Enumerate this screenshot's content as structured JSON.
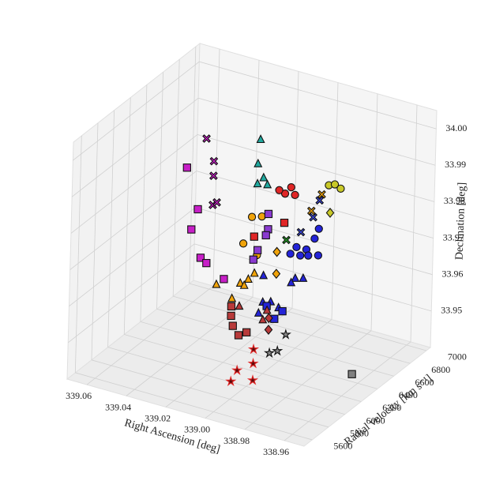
{
  "chart_data": {
    "type": "scatter3d",
    "xlabel": "Right Ascension [deg]",
    "ylabel": "Radial velocity [km s⁻¹]",
    "zlabel": "Declination [deg]",
    "xlim": [
      338.95,
      339.07
    ],
    "ylim": [
      5500,
      7050
    ],
    "zlim": [
      33.94,
      34.005
    ],
    "xticks": [
      339.06,
      339.04,
      339.02,
      {
        "value": 339,
        "label": "339.00"
      },
      338.98,
      338.96
    ],
    "yticks": [
      5600,
      5800,
      6000,
      6200,
      6400,
      6600,
      6800,
      7000
    ],
    "zticks": [
      33.95,
      33.96,
      33.97,
      33.98,
      33.99,
      {
        "value": 34,
        "label": "34.00"
      }
    ],
    "grid": true,
    "series": [
      {
        "marker": "square",
        "color": "#c71fc7",
        "x": [
          339.025,
          339.019,
          339.022,
          339.017,
          339.014,
          339.005
        ],
        "y": [
          5810,
          5810,
          5810,
          5810,
          5810,
          5810
        ],
        "z": [
          33.9995,
          33.989,
          33.983,
          33.976,
          33.975,
          33.972
        ]
      },
      {
        "marker": "x",
        "color": "#c71fc7",
        "x": [
          339.028,
          339.024,
          339.024,
          339.024,
          339.022
        ],
        "y": [
          6120,
          6120,
          6120,
          6120,
          6120
        ],
        "z": [
          34.0016,
          33.996,
          33.992,
          33.984,
          33.985
        ]
      },
      {
        "marker": "triangle",
        "color": "#20a89e",
        "x": [
          339.007,
          339.008,
          339.005,
          339.008,
          339.003
        ],
        "y": [
          6275,
          6275,
          6275,
          6275,
          6275
        ],
        "z": [
          34.0018,
          33.995,
          33.9916,
          33.9895,
          33.99
        ]
      },
      {
        "marker": "circle",
        "color": "#e02626",
        "x": [
          338.994,
          338.991,
          338.997,
          338.989
        ],
        "y": [
          6275,
          6275,
          6275,
          6275
        ],
        "z": [
          33.989,
          33.9912,
          33.9895,
          33.9894
        ]
      },
      {
        "marker": "circle",
        "color": "#c8c828",
        "x": [
          338.997,
          338.994,
          338.991
        ],
        "y": [
          6895,
          6895,
          6895
        ],
        "z": [
          33.98,
          33.9807,
          33.98
        ]
      },
      {
        "marker": "diamond",
        "color": "#c8c828",
        "x": [
          338.996
        ],
        "y": [
          6895
        ],
        "z": [
          33.9726
        ]
      },
      {
        "marker": "circle",
        "color": "#2424d8",
        "x": [
          338.989,
          338.991,
          338.995,
          338.989,
          338.998,
          339.003,
          339.0,
          338.994
        ],
        "y": [
          6585,
          6585,
          6585,
          6585,
          6585,
          6585,
          6585,
          6585
        ],
        "z": [
          33.9747,
          33.9717,
          33.9681,
          33.9674,
          33.966,
          33.9657,
          33.968,
          33.9666
        ]
      },
      {
        "marker": "triangle",
        "color": "#2424d8",
        "x": [
          338.994,
          338.99,
          338.996,
          339.01,
          339.01,
          339.006,
          339.002,
          339.012
        ],
        "y": [
          6430,
          6430,
          6430,
          6430,
          6430,
          6430,
          6430,
          6430
        ],
        "z": [
          33.963,
          33.9636,
          33.9615,
          33.9613,
          33.954,
          33.9547,
          33.9537,
          33.9507
        ]
      },
      {
        "marker": "square",
        "color": "#2424d8",
        "x": [
          339.008,
          339.0,
          339.004
        ],
        "y": [
          6430,
          6430,
          6430
        ],
        "z": [
          33.9533,
          33.9531,
          33.9504
        ]
      },
      {
        "marker": "x",
        "color": "#3a46e0",
        "x": [
          338.998,
          338.992,
          338.989
        ],
        "y": [
          6585,
          6585,
          6585
        ],
        "z": [
          33.9724,
          33.9774,
          33.9825
        ]
      },
      {
        "marker": "x",
        "color": "#22a022",
        "x": [
          338.999
        ],
        "y": [
          6430
        ],
        "z": [
          33.9728
        ]
      },
      {
        "marker": "triangle",
        "color": "#f0a30a",
        "x": [
          339.01,
          339.006,
          339.002,
          338.999,
          339.018,
          339.004
        ],
        "y": [
          6042,
          6042,
          6042,
          6042,
          6042,
          6042
        ],
        "z": [
          33.9618,
          33.9666,
          33.9683,
          33.9704,
          33.9644,
          33.9663
        ]
      },
      {
        "marker": "circle",
        "color": "#f0a30a",
        "x": [
          339.001,
          338.996,
          339.005,
          338.998
        ],
        "y": [
          6042,
          6042,
          6042,
          6042
        ],
        "z": [
          33.9856,
          33.9865,
          33.9777,
          33.9756
        ]
      },
      {
        "marker": "diamond",
        "color": "#f0a30a",
        "x": [
          338.988,
          338.988
        ],
        "y": [
          6042,
          6042
        ],
        "z": [
          33.978,
          33.972
        ]
      },
      {
        "marker": "x",
        "color": "#f0a30a",
        "x": [
          338.988,
          338.993
        ],
        "y": [
          6585,
          6585
        ],
        "z": [
          33.9843,
          33.979
        ]
      },
      {
        "marker": "square",
        "color": "#8a3ad0",
        "x": [
          338.999,
          338.999,
          339.0,
          339.004,
          339.006
        ],
        "y": [
          6198,
          6198,
          6198,
          6198,
          6198
        ],
        "z": [
          33.984,
          33.9798,
          33.978,
          33.9733,
          33.9704
        ]
      },
      {
        "marker": "square",
        "color": "#e02626",
        "x": [
          338.994,
          339.009
        ],
        "y": [
          6275,
          6275
        ],
        "z": [
          33.981,
          33.9749
        ]
      },
      {
        "marker": "square",
        "color": "#b83a3a",
        "x": [
          339.004,
          339.004,
          339.003,
          339.0,
          338.996
        ],
        "y": [
          5888,
          5888,
          5888,
          5888,
          5888
        ],
        "z": [
          33.9633,
          33.9607,
          33.9581,
          33.956,
          33.9574
        ]
      },
      {
        "marker": "triangle",
        "color": "#b83a3a",
        "x": [
          338.988,
          339.0,
          338.986
        ],
        "y": [
          5888,
          5888,
          5888
        ],
        "z": [
          33.962,
          33.9639,
          33.9649
        ]
      },
      {
        "marker": "diamond",
        "color": "#b83a3a",
        "x": [
          338.985,
          338.985
        ],
        "y": [
          5888,
          5888
        ],
        "z": [
          33.963,
          33.9598
        ]
      },
      {
        "marker": "star",
        "color": "#5a0a0a",
        "edgecolor": "#e02626",
        "x": [
          338.997,
          338.994,
          338.986,
          338.986,
          338.986
        ],
        "y": [
          5732,
          5732,
          5732,
          5732,
          5732
        ],
        "z": [
          33.9465,
          33.95,
          33.9485,
          33.9531,
          33.957
        ]
      },
      {
        "marker": "star",
        "color": "#8a8a8a",
        "x": [
          338.978,
          338.974,
          338.97
        ],
        "y": [
          5732,
          5732,
          5732
        ],
        "z": [
          33.9572,
          33.9584,
          33.9635
        ]
      },
      {
        "marker": "square",
        "color": "#808080",
        "x": [
          338.958
        ],
        "y": [
          6275
        ],
        "z": [
          33.945
        ]
      }
    ]
  }
}
